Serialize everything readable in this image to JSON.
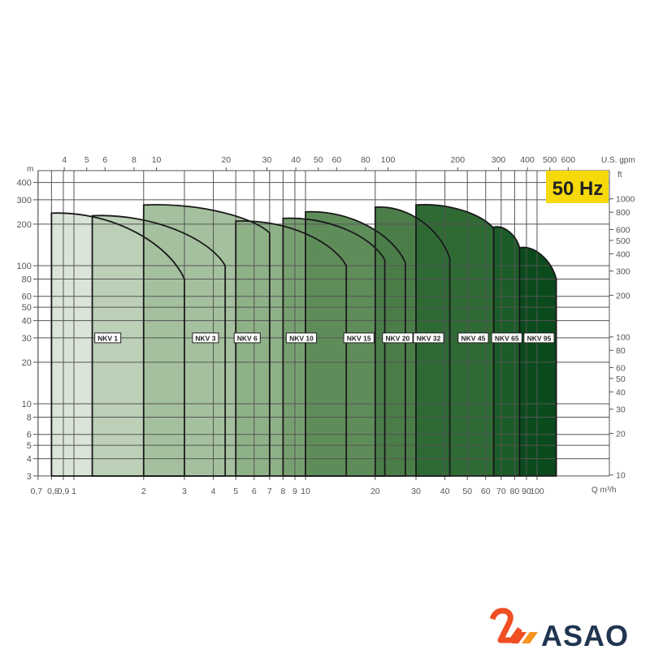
{
  "chart_data": {
    "type": "area",
    "xlabel": "Q m³/h",
    "ylabel": "m",
    "x_scale": "log",
    "y_scale": "log",
    "xlim": [
      0.7,
      205
    ],
    "ylim": [
      3,
      490
    ],
    "grid": true,
    "x_ticks": [
      "0,7",
      "0,8",
      "0,9",
      "1",
      "2",
      "3",
      "4",
      "5",
      "6",
      "7",
      "8",
      "9",
      "10",
      "20",
      "30",
      "40",
      "50",
      "60",
      "70",
      "80",
      "90",
      "100"
    ],
    "x_tick_values": [
      0.7,
      0.8,
      0.9,
      1,
      2,
      3,
      4,
      5,
      6,
      7,
      8,
      9,
      10,
      20,
      30,
      40,
      50,
      60,
      70,
      80,
      90,
      100
    ],
    "y_ticks": [
      "3",
      "4",
      "5",
      "6",
      "8",
      "10",
      "20",
      "30",
      "40",
      "50",
      "60",
      "80",
      "100",
      "200",
      "300",
      "400"
    ],
    "y_tick_values": [
      3,
      4,
      5,
      6,
      8,
      10,
      20,
      30,
      40,
      50,
      60,
      80,
      100,
      200,
      300,
      400
    ],
    "top_axis": {
      "label": "U.S. gpm",
      "ticks": [
        "4",
        "5",
        "6",
        "8",
        "10",
        "20",
        "30",
        "40",
        "50",
        "60",
        "80",
        "100",
        "200",
        "300",
        "400",
        "500",
        "600"
      ],
      "values": [
        4,
        5,
        6,
        8,
        10,
        20,
        30,
        40,
        50,
        60,
        80,
        100,
        200,
        300,
        400,
        500,
        600
      ]
    },
    "right_axis": {
      "label": "ft",
      "ticks": [
        "10",
        "20",
        "30",
        "40",
        "50",
        "60",
        "80",
        "100",
        "200",
        "300",
        "400",
        "500",
        "600",
        "800",
        "1000"
      ],
      "values": [
        10,
        20,
        30,
        40,
        50,
        60,
        80,
        100,
        200,
        300,
        400,
        500,
        600,
        800,
        1000
      ]
    },
    "badge": "50 Hz",
    "badge_color": "#f5d90a",
    "series": [
      {
        "name": "NKV 1",
        "q": [
          0.8,
          3
        ],
        "h": [
          240,
          80
        ],
        "color": "#dbe4d8"
      },
      {
        "name": "NKV 3",
        "q": [
          1.2,
          4.5
        ],
        "h": [
          230,
          100
        ],
        "color": "#bccfb7"
      },
      {
        "name": "NKV 6",
        "q": [
          2,
          7
        ],
        "h": [
          275,
          172
        ],
        "color": "#a5c09e"
      },
      {
        "name": "NKV 10",
        "q": [
          5,
          15
        ],
        "h": [
          210,
          100
        ],
        "color": "#8fb188"
      },
      {
        "name": "NKV 15",
        "q": [
          8,
          22
        ],
        "h": [
          220,
          110
        ],
        "color": "#77a070"
      },
      {
        "name": "NKV 20",
        "q": [
          10,
          27
        ],
        "h": [
          245,
          105
        ],
        "color": "#5f8d5a"
      },
      {
        "name": "NKV 32",
        "q": [
          20,
          42
        ],
        "h": [
          265,
          113
        ],
        "color": "#4b7d48"
      },
      {
        "name": "NKV 45",
        "q": [
          30,
          65
        ],
        "h": [
          275,
          185
        ],
        "color": "#2f6a35"
      },
      {
        "name": "NKV 65",
        "q": [
          65,
          84
        ],
        "h": [
          190,
          135
        ],
        "color": "#1c5c29"
      },
      {
        "name": "NKV 95",
        "q": [
          84,
          121
        ],
        "h": [
          135,
          80
        ],
        "color": "#0b4a1c"
      }
    ]
  },
  "logo": {
    "text": "ASAO",
    "color": "#1f3550",
    "accent": "#f04e23"
  }
}
